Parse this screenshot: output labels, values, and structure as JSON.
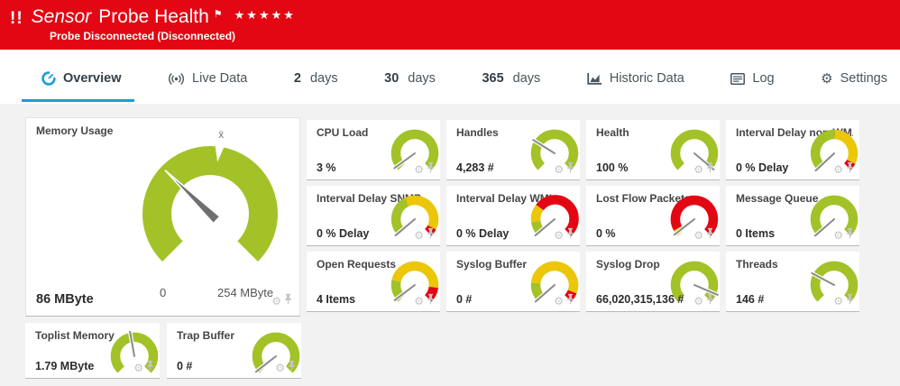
{
  "colors": {
    "banner_red": "#e30613",
    "accent_blue": "#1e9cd7",
    "gauge_green": "#a2c228",
    "gauge_yellow": "#ecc608",
    "gauge_red": "#e30613",
    "needle_gray": "#8a8a8a",
    "icon_gray": "#c3c3c3"
  },
  "icons": {
    "alert_glyph": "!!",
    "flag_glyph": "⚑",
    "stars_glyph": "★★★★★",
    "gear_glyph": "⚙"
  },
  "header": {
    "title_prefix": "Sensor",
    "title": "Probe Health",
    "status": "Probe Disconnected (Disconnected)"
  },
  "tabs": [
    {
      "icon": "gauge-icon",
      "label": "Overview",
      "active": true
    },
    {
      "icon": "live-data-icon",
      "label": "Live Data"
    },
    {
      "number": "2",
      "label": "days"
    },
    {
      "number": "30",
      "label": "days"
    },
    {
      "number": "365",
      "label": "days"
    },
    {
      "icon": "historic-data-icon",
      "label": "Historic Data"
    },
    {
      "icon": "log-icon",
      "label": "Log"
    },
    {
      "icon": "settings-gear-icon",
      "label": "Settings"
    }
  ],
  "memory_gauge": {
    "title": "Memory Usage",
    "value": "86 MByte",
    "scale_min": "0",
    "scale_max": "254 MByte",
    "avg_marker": "x̄",
    "needle_deg": -46,
    "notch_deg": 8,
    "segments": [
      [
        "green",
        -135,
        135
      ]
    ]
  },
  "small_gauges": [
    {
      "title": "CPU Load",
      "value": "3 %",
      "needle_deg": -126,
      "segments": [
        [
          "green",
          -135,
          135
        ]
      ]
    },
    {
      "title": "Handles",
      "value": "4,283 #",
      "needle_deg": -58,
      "segments": [
        [
          "green",
          -135,
          135
        ]
      ]
    },
    {
      "title": "Health",
      "value": "100 %",
      "needle_deg": 130,
      "segments": [
        [
          "green",
          -135,
          135
        ]
      ]
    },
    {
      "title": "Interval Delay non-WM...",
      "value": "0 % Delay",
      "needle_deg": -133,
      "segments": [
        [
          "green",
          -135,
          2
        ],
        [
          "yellow",
          2,
          117
        ],
        [
          "red",
          117,
          135
        ]
      ]
    },
    {
      "title": "Interval Delay SNMP",
      "value": "0 % Delay",
      "needle_deg": -130,
      "segments": [
        [
          "green",
          -135,
          -25
        ],
        [
          "yellow",
          -25,
          116
        ],
        [
          "red",
          116,
          135
        ]
      ]
    },
    {
      "title": "Interval Delay WMI",
      "value": "0 % Delay",
      "needle_deg": -130,
      "segments": [
        [
          "green",
          -135,
          -97
        ],
        [
          "yellow",
          -97,
          -52
        ],
        [
          "red",
          -52,
          135
        ]
      ]
    },
    {
      "title": "Lost Flow Packets",
      "value": "0 %",
      "needle_deg": -128,
      "segments": [
        [
          "yellow",
          -135,
          -119
        ],
        [
          "red",
          -119,
          135
        ]
      ]
    },
    {
      "title": "Message Queue",
      "value": "0 Items",
      "needle_deg": -131,
      "segments": [
        [
          "green",
          -135,
          135
        ]
      ]
    },
    {
      "title": "Open Requests",
      "value": "4 Items",
      "needle_deg": -127,
      "segments": [
        [
          "green",
          -135,
          -77
        ],
        [
          "yellow",
          -77,
          97
        ],
        [
          "red",
          97,
          135
        ]
      ]
    },
    {
      "title": "Syslog Buffer",
      "value": "0 #",
      "needle_deg": -131,
      "segments": [
        [
          "green",
          -135,
          -84
        ],
        [
          "yellow",
          -84,
          111
        ],
        [
          "red",
          111,
          135
        ]
      ]
    },
    {
      "title": "Syslog Drop",
      "value": "66,020,315,136 #",
      "needle_deg": 113,
      "segments": [
        [
          "green",
          -135,
          135
        ]
      ]
    },
    {
      "title": "Threads",
      "value": "146 #",
      "needle_deg": -62,
      "segments": [
        [
          "green",
          -135,
          135
        ]
      ]
    }
  ],
  "bottom_gauges": [
    {
      "title": "Toplist Memory",
      "value": "1.79 MByte",
      "needle_deg": -10,
      "segments": [
        [
          "green",
          -135,
          135
        ]
      ]
    },
    {
      "title": "Trap Buffer",
      "value": "0 #",
      "needle_deg": -128,
      "segments": [
        [
          "green",
          -135,
          135
        ]
      ]
    }
  ]
}
